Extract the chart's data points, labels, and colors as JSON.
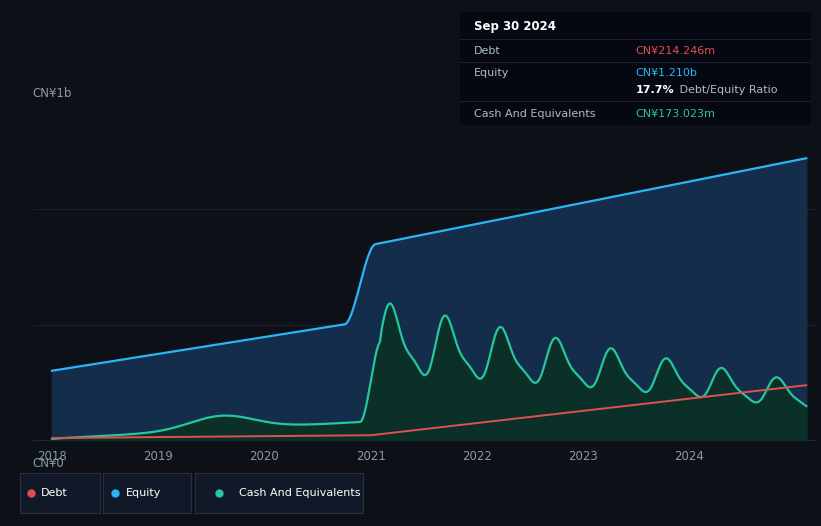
{
  "bg_color": "#0d1117",
  "plot_bg_color": "#0d1117",
  "ylabel_top": "CN¥1b",
  "ylabel_bottom": "CN¥0",
  "x_ticks": [
    "2018",
    "2019",
    "2020",
    "2021",
    "2022",
    "2023",
    "2024"
  ],
  "legend_items": [
    "Debt",
    "Equity",
    "Cash And Equivalents"
  ],
  "legend_colors": [
    "#e05050",
    "#29b6f6",
    "#26c6a0"
  ],
  "tooltip_date": "Sep 30 2024",
  "tooltip_debt_label": "Debt",
  "tooltip_debt_value": "CN¥214.246m",
  "tooltip_debt_color": "#e05050",
  "tooltip_equity_label": "Equity",
  "tooltip_equity_value": "CN¥1.210b",
  "tooltip_equity_color": "#29b6f6",
  "tooltip_ratio": "17.7%",
  "tooltip_ratio_label": " Debt/Equity Ratio",
  "tooltip_cash_label": "Cash And Equivalents",
  "tooltip_cash_value": "CN¥173.023m",
  "tooltip_cash_color": "#26c6a0",
  "equity_color": "#29b6f6",
  "equity_fill": "#132d4a",
  "debt_color": "#e05050",
  "cash_color": "#26c6a0",
  "cash_fill": "#0a3028",
  "grid_color": "#1e2535",
  "tick_color": "#8899aa",
  "separator_color": "#222233",
  "tooltip_bg": "#050810",
  "legend_border": "#2a3040",
  "legend_item_bg": "#111827"
}
